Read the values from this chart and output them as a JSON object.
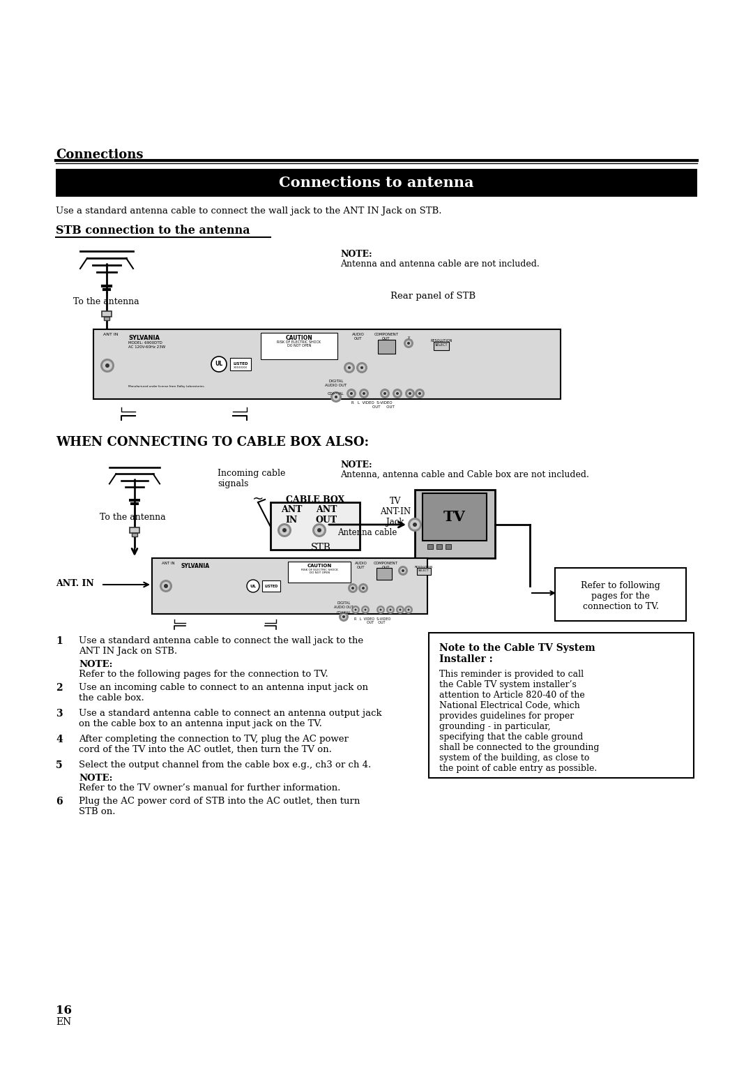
{
  "page_bg": "#ffffff",
  "section_header": "Connections",
  "title_bar_text": "Connections to antenna",
  "intro_text": "Use a standard antenna cable to connect the wall jack to the ANT IN Jack on STB.",
  "sub_heading1": "STB connection to the antenna",
  "note1_title": "NOTE:",
  "note1_body": "Antenna and antenna cable are not included.",
  "rear_panel_label": "Rear panel of STB",
  "to_antenna_label1": "To the antenna",
  "sub_heading2": "WHEN CONNECTING TO CABLE BOX ALSO:",
  "note2_title": "NOTE:",
  "note2_body": "Antenna, antenna cable and Cable box are not included.",
  "incoming_label": "Incoming cable\nsignals",
  "cable_box_label": "CABLE BOX",
  "ant_in_label": "ANT\nIN",
  "ant_out_label": "ANT\nOUT",
  "tv_ant_label": "TV\nANT-IN\nJack",
  "tv_label": "TV",
  "antenna_cable_label": "Antenna cable",
  "stb_label": "STB",
  "ant_in2_label": "ANT. IN",
  "refer_label": "Refer to following\npages for the\nconnection to TV.",
  "to_antenna_label2": "To the antenna",
  "steps": [
    {
      "num": "1",
      "text": "Use a standard antenna cable to connect the wall jack to the\nANT IN Jack on STB.",
      "note_title": "NOTE:",
      "note_body": "Refer to the following pages for the connection to TV."
    },
    {
      "num": "2",
      "text": "Use an incoming cable to connect to an antenna input jack on\nthe cable box.",
      "note_title": null,
      "note_body": null
    },
    {
      "num": "3",
      "text": "Use a standard antenna cable to connect an antenna output jack\non the cable box to an antenna input jack on the TV.",
      "note_title": null,
      "note_body": null
    },
    {
      "num": "4",
      "text": "After completing the connection to TV, plug the AC power\ncord of the TV into the AC outlet, then turn the TV on.",
      "note_title": null,
      "note_body": null
    },
    {
      "num": "5",
      "text": "Select the output channel from the cable box e.g., ch3 or ch 4.",
      "note_title": "NOTE:",
      "note_body": "Refer to the TV owner’s manual for further information."
    },
    {
      "num": "6",
      "text": "Plug the AC power cord of STB into the AC outlet, then turn\nSTB on.",
      "note_title": null,
      "note_body": null
    }
  ],
  "cable_note_title": "Note to the Cable TV System\nInstaller :",
  "cable_note_body": "This reminder is provided to call\nthe Cable TV system installer’s\nattention to Article 820-40 of the\nNational Electrical Code, which\nprovides guidelines for proper\ngrounding - in particular,\nspecifying that the cable ground\nshall be connected to the grounding\nsystem of the building, as close to\nthe point of cable entry as possible.",
  "page_num": "16",
  "page_sub": "EN"
}
